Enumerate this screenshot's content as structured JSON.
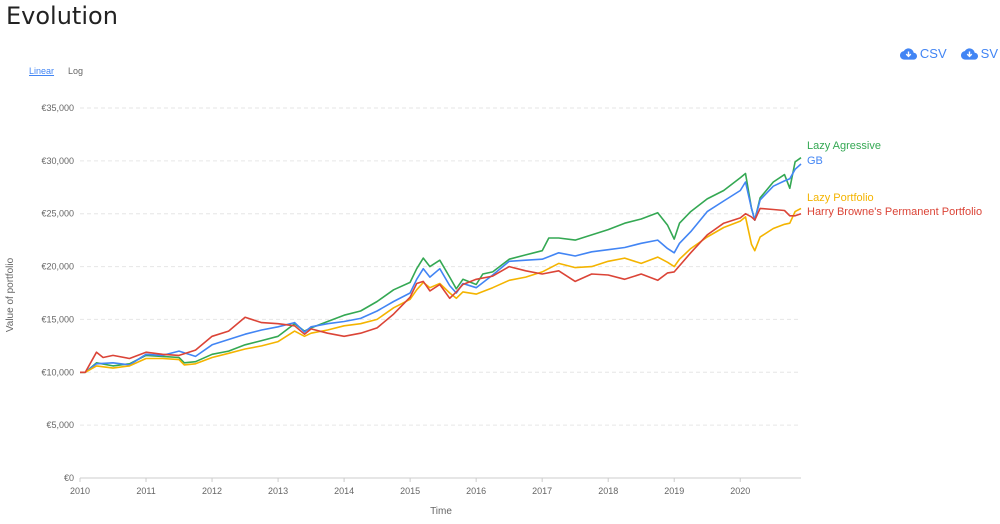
{
  "page": {
    "title": "Evolution",
    "scale_options": {
      "linear": "Linear",
      "log": "Log"
    },
    "downloads": [
      {
        "label": "CSV",
        "icon": "cloud-download-icon"
      },
      {
        "label": "SV",
        "icon": "cloud-download-icon"
      }
    ]
  },
  "chart_data": {
    "type": "line",
    "xlabel": "Time",
    "ylabel": "Value of portfolio",
    "xlim": [
      2010,
      2020.92
    ],
    "ylim": [
      0,
      35000
    ],
    "x_ticks": [
      2010,
      2011,
      2012,
      2013,
      2014,
      2015,
      2016,
      2017,
      2018,
      2019,
      2020
    ],
    "y_ticks": [
      0,
      5000,
      10000,
      15000,
      20000,
      25000,
      30000,
      35000
    ],
    "y_tick_labels": [
      "€0",
      "€5,000",
      "€10,000",
      "€15,000",
      "€20,000",
      "€25,000",
      "€30,000",
      "€35,000"
    ],
    "grid": "horizontal dashed",
    "legend": "inline right labels",
    "series": [
      {
        "name": "Lazy Agressive",
        "color": "#34a853",
        "points": [
          [
            2010,
            10000
          ],
          [
            2010.08,
            10000
          ],
          [
            2010.25,
            10900
          ],
          [
            2010.5,
            10600
          ],
          [
            2010.75,
            10800
          ],
          [
            2011,
            11600
          ],
          [
            2011.25,
            11500
          ],
          [
            2011.5,
            11400
          ],
          [
            2011.58,
            10900
          ],
          [
            2011.75,
            11000
          ],
          [
            2012,
            11700
          ],
          [
            2012.25,
            12000
          ],
          [
            2012.5,
            12600
          ],
          [
            2012.75,
            13000
          ],
          [
            2013,
            13400
          ],
          [
            2013.25,
            14600
          ],
          [
            2013.4,
            13900
          ],
          [
            2013.5,
            14200
          ],
          [
            2013.75,
            14800
          ],
          [
            2014,
            15400
          ],
          [
            2014.25,
            15800
          ],
          [
            2014.5,
            16700
          ],
          [
            2014.75,
            17800
          ],
          [
            2015,
            18500
          ],
          [
            2015.1,
            19800
          ],
          [
            2015.2,
            20800
          ],
          [
            2015.3,
            20000
          ],
          [
            2015.45,
            20600
          ],
          [
            2015.6,
            19000
          ],
          [
            2015.7,
            17900
          ],
          [
            2015.8,
            18800
          ],
          [
            2016,
            18300
          ],
          [
            2016.1,
            19300
          ],
          [
            2016.25,
            19500
          ],
          [
            2016.5,
            20700
          ],
          [
            2016.75,
            21100
          ],
          [
            2017,
            21500
          ],
          [
            2017.1,
            22700
          ],
          [
            2017.25,
            22700
          ],
          [
            2017.5,
            22500
          ],
          [
            2017.75,
            23000
          ],
          [
            2018,
            23500
          ],
          [
            2018.25,
            24100
          ],
          [
            2018.5,
            24500
          ],
          [
            2018.75,
            25100
          ],
          [
            2018.9,
            23900
          ],
          [
            2019,
            22600
          ],
          [
            2019.08,
            24100
          ],
          [
            2019.25,
            25200
          ],
          [
            2019.5,
            26400
          ],
          [
            2019.75,
            27200
          ],
          [
            2020,
            28400
          ],
          [
            2020.08,
            28800
          ],
          [
            2020.17,
            25500
          ],
          [
            2020.22,
            24400
          ],
          [
            2020.3,
            26500
          ],
          [
            2020.5,
            28000
          ],
          [
            2020.67,
            28700
          ],
          [
            2020.75,
            27400
          ],
          [
            2020.83,
            29900
          ],
          [
            2020.92,
            30300
          ]
        ]
      },
      {
        "name": "GB",
        "color": "#4285f4",
        "points": [
          [
            2010,
            10000
          ],
          [
            2010.08,
            10000
          ],
          [
            2010.25,
            10800
          ],
          [
            2010.5,
            10900
          ],
          [
            2010.75,
            10700
          ],
          [
            2011,
            11700
          ],
          [
            2011.25,
            11600
          ],
          [
            2011.5,
            12000
          ],
          [
            2011.75,
            11500
          ],
          [
            2012,
            12600
          ],
          [
            2012.25,
            13100
          ],
          [
            2012.5,
            13600
          ],
          [
            2012.75,
            14000
          ],
          [
            2013,
            14300
          ],
          [
            2013.25,
            14700
          ],
          [
            2013.4,
            13800
          ],
          [
            2013.5,
            14300
          ],
          [
            2013.75,
            14600
          ],
          [
            2014,
            14800
          ],
          [
            2014.25,
            15100
          ],
          [
            2014.5,
            15800
          ],
          [
            2014.75,
            16700
          ],
          [
            2015,
            17500
          ],
          [
            2015.1,
            18800
          ],
          [
            2015.2,
            19800
          ],
          [
            2015.3,
            19000
          ],
          [
            2015.45,
            19800
          ],
          [
            2015.6,
            18200
          ],
          [
            2015.7,
            17500
          ],
          [
            2015.8,
            18400
          ],
          [
            2016,
            18000
          ],
          [
            2016.25,
            19200
          ],
          [
            2016.5,
            20500
          ],
          [
            2016.75,
            20600
          ],
          [
            2017,
            20700
          ],
          [
            2017.25,
            21300
          ],
          [
            2017.5,
            21000
          ],
          [
            2017.75,
            21400
          ],
          [
            2018,
            21600
          ],
          [
            2018.25,
            21800
          ],
          [
            2018.5,
            22200
          ],
          [
            2018.75,
            22500
          ],
          [
            2018.9,
            21700
          ],
          [
            2019,
            21300
          ],
          [
            2019.08,
            22200
          ],
          [
            2019.25,
            23300
          ],
          [
            2019.5,
            25200
          ],
          [
            2019.75,
            26200
          ],
          [
            2020,
            27200
          ],
          [
            2020.08,
            28000
          ],
          [
            2020.17,
            25500
          ],
          [
            2020.22,
            24400
          ],
          [
            2020.3,
            26300
          ],
          [
            2020.5,
            27600
          ],
          [
            2020.67,
            28100
          ],
          [
            2020.75,
            28300
          ],
          [
            2020.83,
            29200
          ],
          [
            2020.92,
            29700
          ]
        ]
      },
      {
        "name": "Lazy Portfolio",
        "color": "#f4b400",
        "points": [
          [
            2010,
            10000
          ],
          [
            2010.08,
            10000
          ],
          [
            2010.25,
            10600
          ],
          [
            2010.5,
            10400
          ],
          [
            2010.75,
            10600
          ],
          [
            2011,
            11300
          ],
          [
            2011.25,
            11300
          ],
          [
            2011.5,
            11200
          ],
          [
            2011.58,
            10700
          ],
          [
            2011.75,
            10800
          ],
          [
            2012,
            11400
          ],
          [
            2012.25,
            11800
          ],
          [
            2012.5,
            12200
          ],
          [
            2012.75,
            12500
          ],
          [
            2013,
            12900
          ],
          [
            2013.25,
            13900
          ],
          [
            2013.4,
            13400
          ],
          [
            2013.5,
            13700
          ],
          [
            2013.75,
            14000
          ],
          [
            2014,
            14400
          ],
          [
            2014.25,
            14600
          ],
          [
            2014.5,
            15000
          ],
          [
            2014.75,
            16100
          ],
          [
            2015,
            16900
          ],
          [
            2015.1,
            17800
          ],
          [
            2015.2,
            18500
          ],
          [
            2015.3,
            18000
          ],
          [
            2015.45,
            18400
          ],
          [
            2015.6,
            17500
          ],
          [
            2015.7,
            17000
          ],
          [
            2015.8,
            17600
          ],
          [
            2016,
            17400
          ],
          [
            2016.25,
            18000
          ],
          [
            2016.5,
            18700
          ],
          [
            2016.75,
            19000
          ],
          [
            2017,
            19500
          ],
          [
            2017.25,
            20300
          ],
          [
            2017.5,
            19900
          ],
          [
            2017.75,
            20000
          ],
          [
            2018,
            20500
          ],
          [
            2018.25,
            20800
          ],
          [
            2018.5,
            20300
          ],
          [
            2018.75,
            20900
          ],
          [
            2018.9,
            20400
          ],
          [
            2019,
            20000
          ],
          [
            2019.08,
            20700
          ],
          [
            2019.25,
            21700
          ],
          [
            2019.5,
            22800
          ],
          [
            2019.75,
            23700
          ],
          [
            2020,
            24300
          ],
          [
            2020.08,
            24700
          ],
          [
            2020.17,
            22100
          ],
          [
            2020.22,
            21500
          ],
          [
            2020.3,
            22800
          ],
          [
            2020.5,
            23600
          ],
          [
            2020.67,
            24000
          ],
          [
            2020.75,
            24100
          ],
          [
            2020.83,
            25200
          ],
          [
            2020.92,
            25500
          ]
        ]
      },
      {
        "name": "Harry Browne's Permanent Portfolio",
        "color": "#db4437",
        "points": [
          [
            2010,
            10000
          ],
          [
            2010.08,
            10000
          ],
          [
            2010.25,
            11900
          ],
          [
            2010.35,
            11400
          ],
          [
            2010.5,
            11600
          ],
          [
            2010.75,
            11300
          ],
          [
            2011,
            11900
          ],
          [
            2011.25,
            11700
          ],
          [
            2011.5,
            11600
          ],
          [
            2011.75,
            12100
          ],
          [
            2012,
            13400
          ],
          [
            2012.25,
            13900
          ],
          [
            2012.5,
            15200
          ],
          [
            2012.75,
            14700
          ],
          [
            2013,
            14600
          ],
          [
            2013.25,
            14400
          ],
          [
            2013.4,
            13600
          ],
          [
            2013.5,
            14100
          ],
          [
            2013.75,
            13700
          ],
          [
            2014,
            13400
          ],
          [
            2014.25,
            13700
          ],
          [
            2014.5,
            14200
          ],
          [
            2014.75,
            15500
          ],
          [
            2015,
            17100
          ],
          [
            2015.1,
            18400
          ],
          [
            2015.2,
            18600
          ],
          [
            2015.3,
            17700
          ],
          [
            2015.45,
            18300
          ],
          [
            2015.6,
            17000
          ],
          [
            2015.7,
            17600
          ],
          [
            2015.8,
            18300
          ],
          [
            2016,
            18800
          ],
          [
            2016.25,
            19100
          ],
          [
            2016.5,
            20000
          ],
          [
            2016.75,
            19600
          ],
          [
            2017,
            19300
          ],
          [
            2017.25,
            19600
          ],
          [
            2017.5,
            18600
          ],
          [
            2017.75,
            19300
          ],
          [
            2018,
            19200
          ],
          [
            2018.25,
            18800
          ],
          [
            2018.5,
            19300
          ],
          [
            2018.75,
            18700
          ],
          [
            2018.9,
            19400
          ],
          [
            2019,
            19500
          ],
          [
            2019.25,
            21300
          ],
          [
            2019.5,
            23000
          ],
          [
            2019.75,
            24100
          ],
          [
            2020,
            24600
          ],
          [
            2020.08,
            25000
          ],
          [
            2020.17,
            24700
          ],
          [
            2020.22,
            24400
          ],
          [
            2020.3,
            25500
          ],
          [
            2020.5,
            25400
          ],
          [
            2020.67,
            25300
          ],
          [
            2020.75,
            24800
          ],
          [
            2020.83,
            24800
          ],
          [
            2020.92,
            25000
          ]
        ]
      }
    ]
  }
}
